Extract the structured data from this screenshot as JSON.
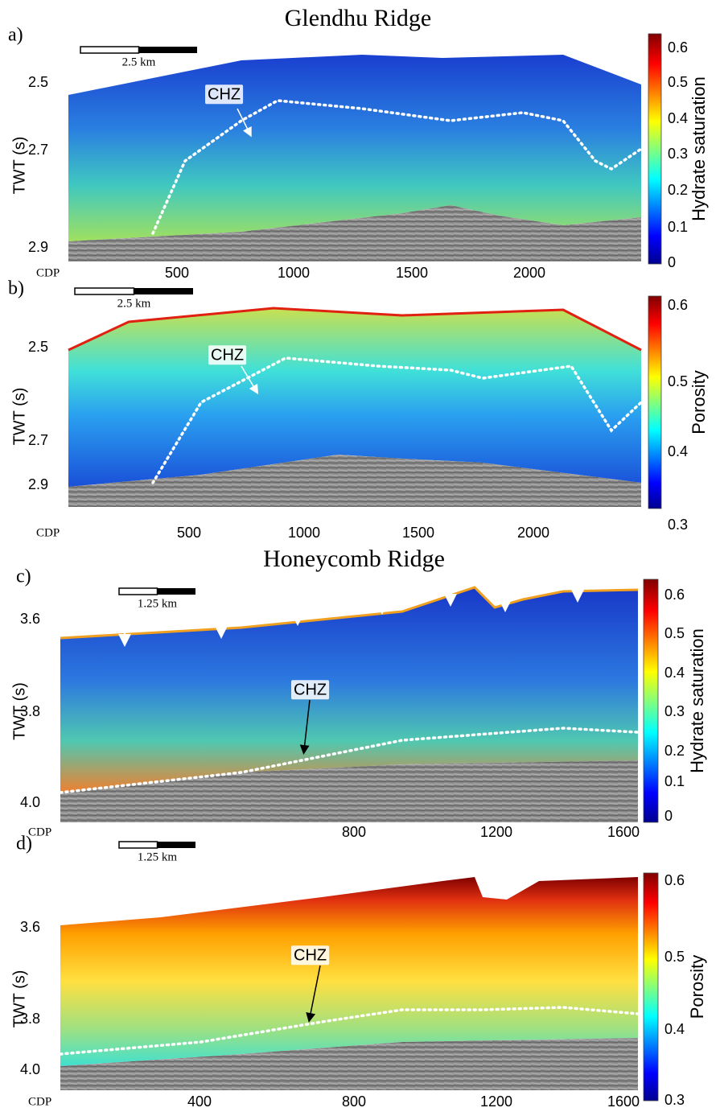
{
  "title_top": "Glendhu Ridge",
  "title_bottom": "Honeycomb Ridge",
  "panels": [
    {
      "label": "a)",
      "y_axis_label": "TWT (s)",
      "y_ticks": [
        "2.5",
        "2.7",
        "2.9"
      ],
      "x_axis_label": "CDP",
      "x_ticks": [
        "500",
        "1000",
        "1500",
        "2000"
      ],
      "scale_bar": "2.5 km",
      "annotation": "CHZ",
      "colorbar_label": "Hydrate saturation",
      "colorbar_ticks": [
        "0.6",
        "0.5",
        "0.4",
        "0.3",
        "0.2",
        "0.1",
        "0"
      ]
    },
    {
      "label": "b)",
      "y_axis_label": "TWT (s)",
      "y_ticks": [
        "2.5",
        "2.7",
        "2.9"
      ],
      "x_axis_label": "CDP",
      "x_ticks": [
        "500",
        "1000",
        "1500",
        "2000"
      ],
      "scale_bar": "2.5 km",
      "annotation": "CHZ",
      "colorbar_label": "Porosity",
      "colorbar_ticks": [
        "0.6",
        "0.5",
        "0.4",
        "0.3"
      ]
    },
    {
      "label": "c)",
      "y_axis_label": "TWT (s)",
      "y_ticks": [
        "3.6",
        "3.8",
        "4.0"
      ],
      "x_axis_label": "CDP",
      "x_ticks": [
        "800",
        "1200",
        "1600"
      ],
      "scale_bar": "1.25 km",
      "annotation": "CHZ",
      "colorbar_label": "Hydrate saturation",
      "colorbar_ticks": [
        "0.6",
        "0.5",
        "0.4",
        "0.3",
        "0.2",
        "0.1",
        "0"
      ]
    },
    {
      "label": "d)",
      "y_axis_label": "TWT (s)",
      "y_ticks": [
        "3.6",
        "3.8",
        "4.0"
      ],
      "x_axis_label": "CDP",
      "x_ticks": [
        "400",
        "800",
        "1200",
        "1600"
      ],
      "scale_bar": "1.25 km",
      "annotation": "CHZ",
      "colorbar_label": "Porosity",
      "colorbar_ticks": [
        "0.6",
        "0.5",
        "0.4",
        "0.3"
      ]
    }
  ]
}
